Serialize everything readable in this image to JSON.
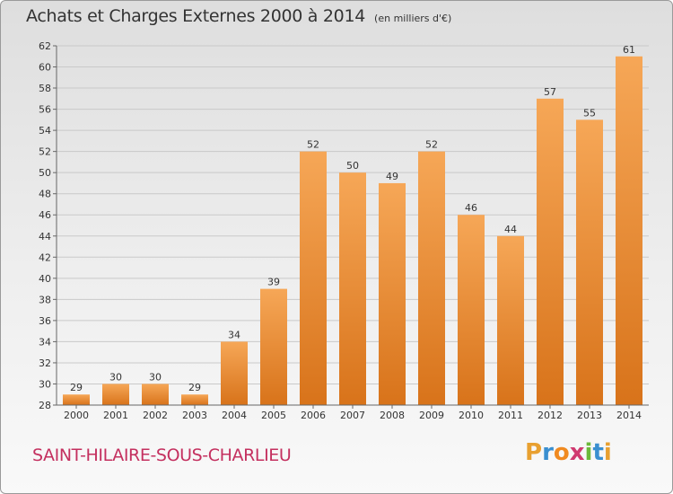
{
  "header": {
    "title": "Achats et Charges Externes 2000 à 2014",
    "unit": "(en milliers d'€)"
  },
  "footer": {
    "commune": "SAINT-HILAIRE-SOUS-CHARLIEU",
    "logo_letters": [
      "P",
      "r",
      "o",
      "x",
      "i",
      "t",
      "i"
    ],
    "logo_colors": [
      "#e8a030",
      "#3a8fd0",
      "#f08a20",
      "#d03a70",
      "#6cb83a",
      "#3a8fd0",
      "#e8a030"
    ]
  },
  "colors": {
    "bar_light": "#f6a757",
    "bar_dark": "#d8731a",
    "title": "#333333",
    "commune": "#c4305f"
  },
  "chart_data": {
    "type": "bar",
    "title": "Achats et Charges Externes 2000 à 2014",
    "subtitle": "(en milliers d'€)",
    "xlabel": "",
    "ylabel": "",
    "categories": [
      "2000",
      "2001",
      "2002",
      "2003",
      "2004",
      "2005",
      "2006",
      "2007",
      "2008",
      "2009",
      "2010",
      "2011",
      "2012",
      "2013",
      "2014"
    ],
    "values": [
      29,
      30,
      30,
      29,
      34,
      39,
      52,
      50,
      49,
      52,
      46,
      44,
      57,
      55,
      61
    ],
    "ylim": [
      28,
      62
    ],
    "yticks": [
      28,
      30,
      32,
      34,
      36,
      38,
      40,
      42,
      44,
      46,
      48,
      50,
      52,
      54,
      56,
      58,
      60,
      62
    ],
    "grid": true,
    "data_labels": true,
    "legend": "none"
  }
}
